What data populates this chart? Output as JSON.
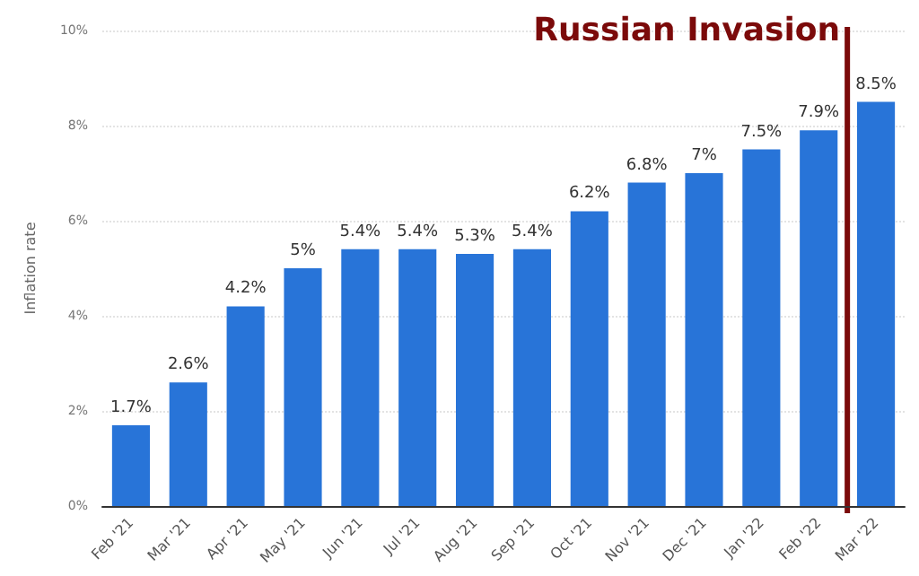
{
  "chart_data": {
    "type": "bar",
    "ylabel": "Inflation rate",
    "categories": [
      "Feb '21",
      "Mar '21",
      "Apr '21",
      "May '21",
      "Jun '21",
      "Jul '21",
      "Aug '21",
      "Sep '21",
      "Oct '21",
      "Nov '21",
      "Dec '21",
      "Jan '22",
      "Feb '22",
      "Mar '22"
    ],
    "values": [
      1.7,
      2.6,
      4.2,
      5,
      5.4,
      5.4,
      5.3,
      5.4,
      6.2,
      6.8,
      7,
      7.5,
      7.9,
      8.5
    ],
    "value_labels": [
      "1.7%",
      "2.6%",
      "4.2%",
      "5%",
      "5.4%",
      "5.4%",
      "5.3%",
      "5.4%",
      "6.2%",
      "6.8%",
      "7%",
      "7.5%",
      "7.9%",
      "8.5%"
    ],
    "color": "#2874d8",
    "ylim": [
      0,
      10
    ],
    "yticks": [
      {
        "value": 0,
        "label": "0%"
      },
      {
        "value": 2,
        "label": "2%"
      },
      {
        "value": 4,
        "label": "4%"
      },
      {
        "value": 6,
        "label": "6%"
      },
      {
        "value": 8,
        "label": "8%"
      },
      {
        "value": 10,
        "label": "10%"
      }
    ],
    "grid": "y",
    "ref_lines": [
      {
        "axis": "x",
        "value": "Mar '22",
        "label": "Russian Invasion",
        "color": "#7b0a0a"
      }
    ]
  }
}
